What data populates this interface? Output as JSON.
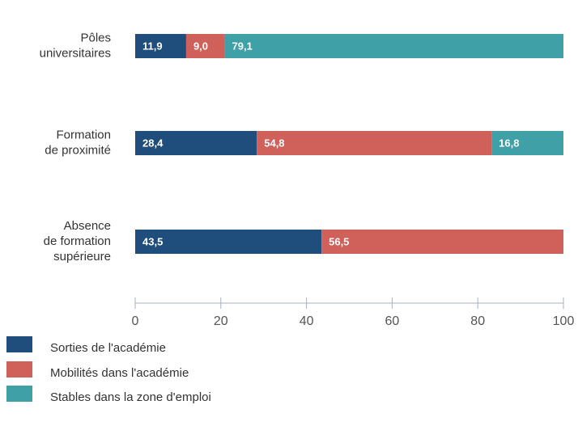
{
  "chart_data": {
    "type": "stacked-barh",
    "categories": [
      [
        "Pôles",
        "universitaires"
      ],
      [
        "Formation",
        "de proximité"
      ],
      [
        "Absence",
        "de formation",
        "supérieure"
      ]
    ],
    "series": [
      {
        "name": "Sorties de l'académie",
        "color": "#1f4e7d",
        "values": [
          11.9,
          28.4,
          43.5
        ],
        "value_labels": [
          "11,9",
          "28,4",
          "43,5"
        ]
      },
      {
        "name": "Mobilités dans l'académie",
        "color": "#d0605a",
        "values": [
          9.0,
          54.8,
          56.5
        ],
        "value_labels": [
          "9,0",
          "54,8",
          "56,5"
        ]
      },
      {
        "name": "Stables dans la zone d'emploi",
        "color": "#3fa0a8",
        "values": [
          79.1,
          16.8,
          null
        ],
        "value_labels": [
          "79,1",
          "16,8",
          null
        ]
      }
    ],
    "xlim": [
      0,
      100
    ],
    "xticks": [
      0,
      20,
      40,
      60,
      80,
      100
    ]
  }
}
